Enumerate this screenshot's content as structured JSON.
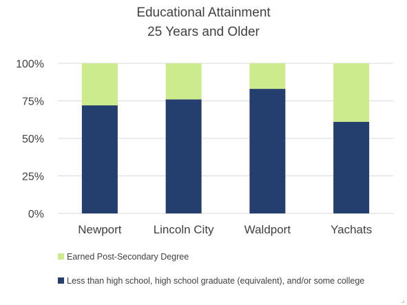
{
  "chart_data": {
    "type": "bar",
    "stacked": true,
    "title": "Educational Attainment",
    "subtitle": "25 Years and Older",
    "categories": [
      "Newport",
      "Lincoln City",
      "Waldport",
      "Yachats"
    ],
    "series": [
      {
        "name": "Less than high school, high school graduate (equivalent), and/or some college",
        "color": "#243F6E",
        "values": [
          72,
          76,
          83,
          61
        ]
      },
      {
        "name": "Earned Post-Secondary Degree",
        "color": "#CCEB8C",
        "values": [
          28,
          24,
          17,
          39
        ]
      }
    ],
    "y_ticks": [
      "0%",
      "25%",
      "50%",
      "75%",
      "100%"
    ],
    "ylim": [
      0,
      100
    ],
    "grid": true,
    "legend_position": "bottom-left"
  },
  "legend_items": [
    {
      "label": "Earned Post-Secondary Degree",
      "color": "#CCEB8C"
    },
    {
      "label": "Less than high school, high school graduate (equivalent), and/or some college",
      "color": "#243F6E"
    }
  ]
}
